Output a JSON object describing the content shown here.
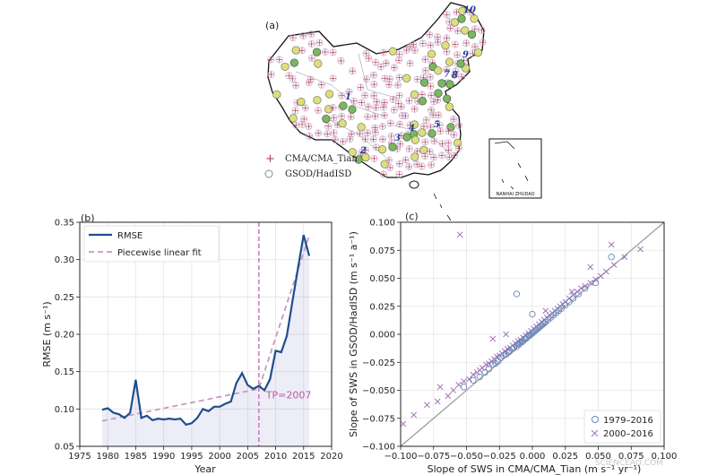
{
  "panel_a": {
    "label": "(a)",
    "legend": [
      {
        "symbol": "+",
        "text": "CMA/CMA_Tian",
        "color": "#b0405a"
      },
      {
        "symbol": "o",
        "text": "GSOD/HadISD",
        "color": "#888888"
      }
    ],
    "inset_label": "NANHAI ZHUDAO",
    "station_numbers": [
      "1",
      "2",
      "3",
      "4",
      "5",
      "6",
      "7",
      "8",
      "9",
      "10"
    ]
  },
  "watermark": "SCIENCEAQ.COM",
  "chart_data": [
    {
      "panel": "(b)",
      "type": "line",
      "title": "",
      "xlabel": "Year",
      "ylabel": "RMSE (m s⁻¹)",
      "xlim": [
        1975,
        2020
      ],
      "ylim": [
        0.05,
        0.35
      ],
      "xticks": [
        "1975",
        "1980",
        "1985",
        "1990",
        "1995",
        "2000",
        "2005",
        "2010",
        "2015",
        "2020"
      ],
      "yticks": [
        "0.05",
        "0.10",
        "0.15",
        "0.20",
        "0.25",
        "0.30",
        "0.35"
      ],
      "grid": true,
      "legend_position": "top-left",
      "series": [
        {
          "name": "RMSE",
          "color": "#1f4e8c",
          "x": [
            1979,
            1980,
            1981,
            1982,
            1983,
            1984,
            1985,
            1986,
            1987,
            1988,
            1989,
            1990,
            1991,
            1992,
            1993,
            1994,
            1995,
            1996,
            1997,
            1998,
            1999,
            2000,
            2001,
            2002,
            2003,
            2004,
            2005,
            2006,
            2007,
            2008,
            2009,
            2010,
            2011,
            2012,
            2013,
            2014,
            2015,
            2016
          ],
          "values": [
            0.099,
            0.101,
            0.095,
            0.093,
            0.088,
            0.095,
            0.139,
            0.088,
            0.091,
            0.085,
            0.087,
            0.086,
            0.087,
            0.086,
            0.087,
            0.079,
            0.081,
            0.088,
            0.1,
            0.097,
            0.103,
            0.103,
            0.107,
            0.11,
            0.135,
            0.148,
            0.132,
            0.127,
            0.131,
            0.125,
            0.14,
            0.178,
            0.176,
            0.198,
            0.244,
            0.289,
            0.333,
            0.305
          ]
        },
        {
          "name": "Piecewise linear fit",
          "color": "#c79ac2",
          "style": "dashed",
          "x": [
            1979,
            2007,
            2016
          ],
          "values": [
            0.084,
            0.127,
            0.332
          ]
        }
      ],
      "shaded_area_under": "RMSE",
      "annotations": [
        {
          "text": "TP=2007",
          "x": 2007,
          "type": "vertical-dashed-line",
          "color": "#b65aa6"
        }
      ]
    },
    {
      "panel": "(c)",
      "type": "scatter",
      "title": "",
      "xlabel": "Slope of SWS in CMA/CMA_Tian (m s⁻¹ yr⁻¹)",
      "ylabel": "Slope of SWS in GSOD/HadISD (m s⁻¹ a⁻¹)",
      "xlim": [
        -0.1,
        0.1
      ],
      "ylim": [
        -0.1,
        0.1
      ],
      "xticks": [
        "−0.100",
        "−0.075",
        "−0.050",
        "−0.025",
        "0.000",
        "0.025",
        "0.050",
        "0.075",
        "0.100"
      ],
      "yticks": [
        "−0.100",
        "−0.075",
        "−0.050",
        "−0.025",
        "0.000",
        "0.025",
        "0.050",
        "0.075",
        "0.100"
      ],
      "grid": true,
      "legend_position": "bottom-right",
      "reference_line": "y = x",
      "series": [
        {
          "name": "1979–2016",
          "marker": "circle",
          "color": "#6a86b8",
          "x": [
            -0.052,
            -0.045,
            -0.04,
            -0.036,
            -0.033,
            -0.03,
            -0.028,
            -0.026,
            -0.024,
            -0.022,
            -0.02,
            -0.018,
            -0.017,
            -0.015,
            -0.014,
            -0.012,
            -0.011,
            -0.01,
            -0.009,
            -0.008,
            -0.007,
            -0.006,
            -0.005,
            -0.004,
            -0.003,
            -0.002,
            -0.001,
            0.0,
            0.001,
            0.002,
            0.003,
            0.004,
            0.005,
            0.006,
            0.007,
            0.008,
            0.009,
            0.01,
            0.012,
            0.014,
            0.016,
            0.018,
            0.02,
            0.022,
            0.025,
            0.028,
            0.031,
            0.035,
            0.04,
            0.048,
            -0.012,
            0.0,
            0.06
          ],
          "values": [
            -0.047,
            -0.041,
            -0.038,
            -0.034,
            -0.031,
            -0.027,
            -0.026,
            -0.024,
            -0.021,
            -0.019,
            -0.018,
            -0.016,
            -0.015,
            -0.013,
            -0.012,
            -0.011,
            -0.009,
            -0.009,
            -0.007,
            -0.007,
            -0.006,
            -0.004,
            -0.004,
            -0.003,
            -0.001,
            -0.001,
            0.0,
            0.001,
            0.002,
            0.003,
            0.004,
            0.005,
            0.006,
            0.007,
            0.008,
            0.009,
            0.01,
            0.011,
            0.013,
            0.015,
            0.017,
            0.019,
            0.021,
            0.023,
            0.026,
            0.029,
            0.032,
            0.036,
            0.041,
            0.046,
            0.036,
            0.018,
            0.069
          ]
        },
        {
          "name": "2000–2016",
          "marker": "x",
          "color": "#a070b8",
          "x": [
            -0.098,
            -0.09,
            -0.08,
            -0.072,
            -0.064,
            -0.06,
            -0.056,
            -0.052,
            -0.048,
            -0.045,
            -0.042,
            -0.04,
            -0.038,
            -0.035,
            -0.033,
            -0.031,
            -0.029,
            -0.027,
            -0.025,
            -0.023,
            -0.021,
            -0.019,
            -0.017,
            -0.015,
            -0.013,
            -0.011,
            -0.009,
            -0.007,
            -0.005,
            -0.003,
            -0.001,
            0.001,
            0.003,
            0.005,
            0.007,
            0.009,
            0.011,
            0.013,
            0.015,
            0.017,
            0.019,
            0.021,
            0.023,
            0.025,
            0.028,
            0.031,
            0.034,
            0.037,
            0.04,
            0.044,
            0.048,
            0.052,
            0.056,
            0.062,
            0.07,
            0.082,
            -0.055,
            -0.03,
            -0.02,
            0.01,
            0.03,
            0.044,
            -0.07,
            0.06
          ],
          "values": [
            -0.08,
            -0.072,
            -0.063,
            -0.06,
            -0.055,
            -0.05,
            -0.045,
            -0.042,
            -0.04,
            -0.036,
            -0.034,
            -0.032,
            -0.03,
            -0.027,
            -0.026,
            -0.024,
            -0.022,
            -0.02,
            -0.019,
            -0.017,
            -0.015,
            -0.013,
            -0.012,
            -0.01,
            -0.008,
            -0.006,
            -0.005,
            -0.003,
            -0.001,
            0.001,
            0.003,
            0.005,
            0.007,
            0.009,
            0.011,
            0.013,
            0.015,
            0.017,
            0.019,
            0.021,
            0.023,
            0.025,
            0.027,
            0.029,
            0.032,
            0.035,
            0.038,
            0.041,
            0.043,
            0.046,
            0.049,
            0.052,
            0.056,
            0.062,
            0.069,
            0.076,
            0.089,
            -0.004,
            0.0,
            0.021,
            0.038,
            0.06,
            -0.047,
            0.08
          ]
        }
      ]
    }
  ]
}
